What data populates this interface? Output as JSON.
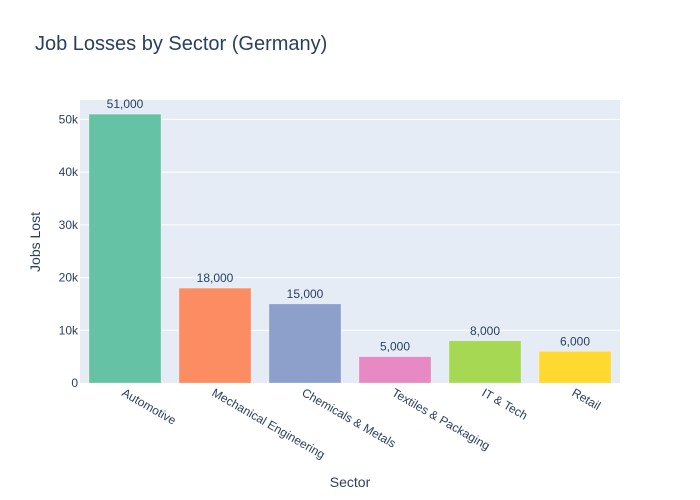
{
  "chart_data": {
    "type": "bar",
    "title": "Job Losses by Sector (Germany)",
    "xlabel": "Sector",
    "ylabel": "Jobs Lost",
    "categories": [
      "Automotive",
      "Mechanical Engineering",
      "Chemicals & Metals",
      "Textiles & Packaging",
      "IT & Tech",
      "Retail"
    ],
    "values": [
      51000,
      18000,
      15000,
      5000,
      8000,
      6000
    ],
    "data_labels": [
      "51,000",
      "18,000",
      "15,000",
      "5,000",
      "8,000",
      "6,000"
    ],
    "colors": [
      "#66c2a5",
      "#fc8d62",
      "#8da0cb",
      "#e78ac3",
      "#a6d854",
      "#ffd92f"
    ],
    "ylim": [
      0,
      53684
    ],
    "yticks": [
      0,
      10000,
      20000,
      30000,
      40000,
      50000
    ],
    "ytick_labels": [
      "0",
      "10k",
      "20k",
      "30k",
      "40k",
      "50k"
    ],
    "grid": true,
    "legend": "none",
    "plot_bgcolor": "#e5ecf6"
  }
}
